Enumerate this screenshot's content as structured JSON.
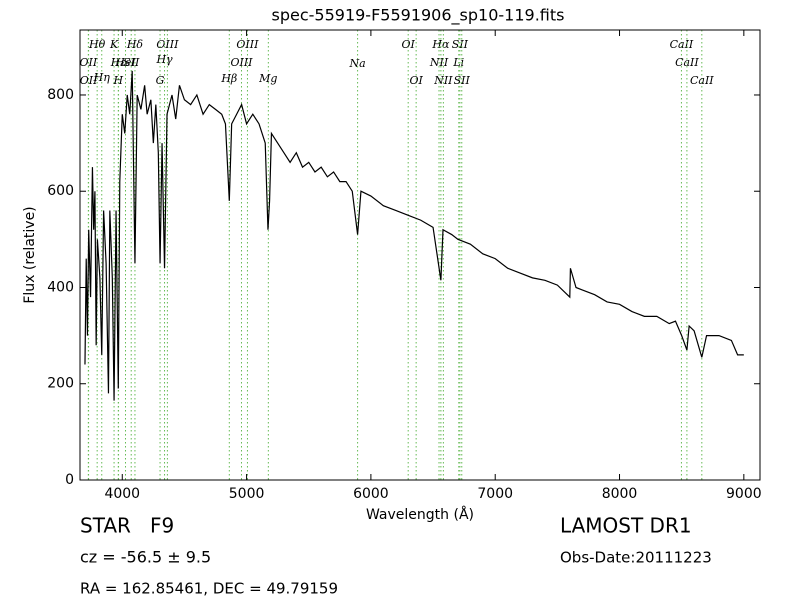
{
  "chart_data": {
    "type": "line",
    "title": "spec-55919-F5591906_sp10-119.fits",
    "x_label": "Wavelength (Å)",
    "y_label": "Flux (relative)",
    "xlim": [
      3660,
      9130
    ],
    "ylim": [
      0,
      935
    ],
    "xticks": [
      4000,
      5000,
      6000,
      7000,
      8000,
      9000
    ],
    "yticks": [
      0,
      200,
      400,
      600,
      800
    ],
    "grid": false,
    "series": [
      {
        "color": "#000000",
        "x": [
          3700,
          3710,
          3720,
          3730,
          3745,
          3760,
          3770,
          3780,
          3790,
          3800,
          3820,
          3835,
          3850,
          3870,
          3889,
          3900,
          3920,
          3934,
          3950,
          3968,
          3980,
          4000,
          4020,
          4040,
          4060,
          4080,
          4102,
          4120,
          4150,
          4180,
          4200,
          4230,
          4250,
          4270,
          4290,
          4304,
          4320,
          4340,
          4360,
          4400,
          4430,
          4460,
          4500,
          4550,
          4600,
          4650,
          4700,
          4750,
          4800,
          4830,
          4861,
          4880,
          4920,
          4960,
          5000,
          5050,
          5100,
          5150,
          5172,
          5185,
          5200,
          5250,
          5300,
          5350,
          5400,
          5450,
          5500,
          5550,
          5600,
          5650,
          5700,
          5750,
          5800,
          5850,
          5893,
          5920,
          6000,
          6100,
          6200,
          6300,
          6400,
          6500,
          6563,
          6580,
          6650,
          6700,
          6800,
          6900,
          7000,
          7100,
          7200,
          7300,
          7400,
          7500,
          7600,
          7605,
          7650,
          7700,
          7800,
          7900,
          8000,
          8100,
          8200,
          8300,
          8400,
          8450,
          8500,
          8542,
          8560,
          8600,
          8662,
          8700,
          8800,
          8900,
          8950,
          9000
        ],
        "values": [
          240,
          460,
          300,
          520,
          380,
          650,
          520,
          600,
          280,
          500,
          420,
          260,
          560,
          450,
          180,
          560,
          420,
          165,
          560,
          190,
          620,
          760,
          720,
          800,
          760,
          850,
          450,
          800,
          770,
          820,
          760,
          790,
          700,
          780,
          680,
          450,
          700,
          440,
          760,
          800,
          750,
          820,
          790,
          780,
          800,
          760,
          780,
          770,
          760,
          740,
          580,
          740,
          760,
          780,
          740,
          760,
          740,
          700,
          520,
          580,
          720,
          700,
          680,
          660,
          680,
          650,
          660,
          640,
          650,
          630,
          640,
          620,
          620,
          600,
          510,
          600,
          590,
          570,
          560,
          550,
          540,
          525,
          415,
          520,
          510,
          500,
          490,
          470,
          460,
          440,
          430,
          420,
          415,
          405,
          380,
          440,
          400,
          395,
          385,
          370,
          365,
          350,
          340,
          340,
          325,
          330,
          300,
          270,
          320,
          310,
          255,
          300,
          300,
          290,
          260,
          260
        ]
      }
    ],
    "spectral_lines": [
      {
        "label": "Hθ",
        "wavelength": 3798
      },
      {
        "label": "K",
        "wavelength": 3934
      },
      {
        "label": "Hδ",
        "wavelength": 4102
      },
      {
        "label": "OIII",
        "wavelength": 4363
      },
      {
        "label": "OIII",
        "wavelength": 5007
      },
      {
        "label": "OI",
        "wavelength": 6300
      },
      {
        "label": "Hα",
        "wavelength": 6563
      },
      {
        "label": "SII",
        "wavelength": 6716
      },
      {
        "label": "CaII",
        "wavelength": 8498
      },
      {
        "label": "OII",
        "wavelength": 3727
      },
      {
        "label": "Hε",
        "wavelength": 3970
      },
      {
        "label": "HeI",
        "wavelength": 4026
      },
      {
        "label": "SII",
        "wavelength": 4072
      },
      {
        "label": "Hγ",
        "wavelength": 4340
      },
      {
        "label": "OIII",
        "wavelength": 4959
      },
      {
        "label": "Na",
        "wavelength": 5893
      },
      {
        "label": "NII",
        "wavelength": 6548
      },
      {
        "label": "Li",
        "wavelength": 6707
      },
      {
        "label": "CaII",
        "wavelength": 8542
      },
      {
        "label": "OII",
        "wavelength": 3729
      },
      {
        "label": "Hη",
        "wavelength": 3835
      },
      {
        "label": "H",
        "wavelength": 3968
      },
      {
        "label": "G",
        "wavelength": 4304
      },
      {
        "label": "Hβ",
        "wavelength": 4861
      },
      {
        "label": "Mg",
        "wavelength": 5175
      },
      {
        "label": "OI",
        "wavelength": 6364
      },
      {
        "label": "NII",
        "wavelength": 6583
      },
      {
        "label": "SII",
        "wavelength": 6731
      },
      {
        "label": "CaII",
        "wavelength": 8662
      }
    ],
    "line_color": "#66bb55",
    "object_class": "STAR   F9",
    "redshift": "cz = -56.5 ± 9.5",
    "coordinates": "RA = 162.85461, DEC = 49.79159",
    "survey": "LAMOST DR1",
    "obs_date": "Obs-Date:20111223"
  }
}
